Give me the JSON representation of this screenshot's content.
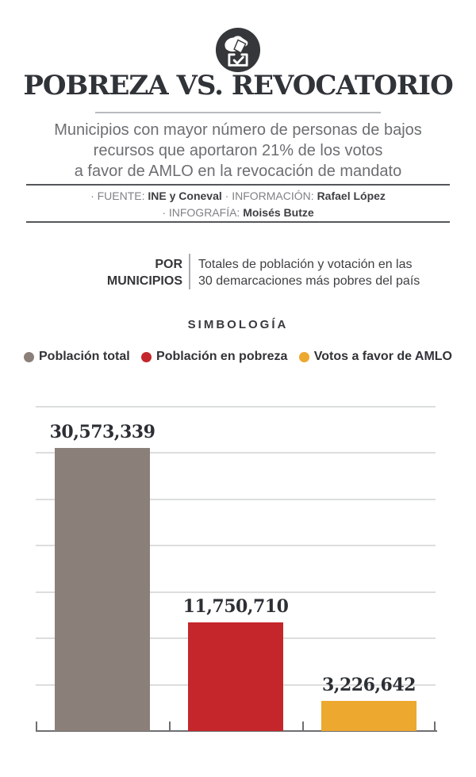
{
  "header": {
    "icon_name": "hand-ballot-icon",
    "title": "POBREZA VS. REVOCATORIO",
    "subtitle_lines": [
      "Municipios con mayor número de personas de bajos",
      "recursos que aportaron 21% de los votos",
      "a favor de AMLO en la revocación de mandato"
    ],
    "credits": {
      "line1": [
        {
          "text": "· FUENTE: "
        },
        {
          "text": "INE y Coneval"
        },
        {
          "text": " · INFORMACIÓN: "
        },
        {
          "text": "Rafael López"
        }
      ],
      "line2": [
        {
          "text": "· INFOGRAFÍA: "
        },
        {
          "text": "Moisés Butze"
        }
      ]
    }
  },
  "section_header": {
    "kicker_line1": "POR",
    "kicker_line2": "MUNICIPIOS",
    "description_line1": "Totales de población y votación en las",
    "description_line2": "30 demarcaciones más pobres del país"
  },
  "legend": {
    "title": "SIMBOLOGÍA",
    "items": [
      {
        "label": "Población total",
        "color": "#8b8079"
      },
      {
        "label": "Población en pobreza",
        "color": "#c4262b"
      },
      {
        "label": "Votos a favor de AMLO",
        "color": "#eca82f"
      }
    ]
  },
  "chart_data": {
    "type": "bar",
    "categories": [
      "Población total",
      "Población en pobreza",
      "Votos a favor de AMLO"
    ],
    "values": [
      30573339,
      11750710,
      3226642
    ],
    "value_labels": [
      "30,573,339",
      "11,750,710",
      "3,226,642"
    ],
    "colors": [
      "#8b8079",
      "#c4262b",
      "#eca82f"
    ],
    "title": "",
    "xlabel": "",
    "ylabel": "",
    "ylim": [
      0,
      35000000
    ],
    "gridline_step": 5000000,
    "grid": true,
    "legend_position": "top"
  }
}
